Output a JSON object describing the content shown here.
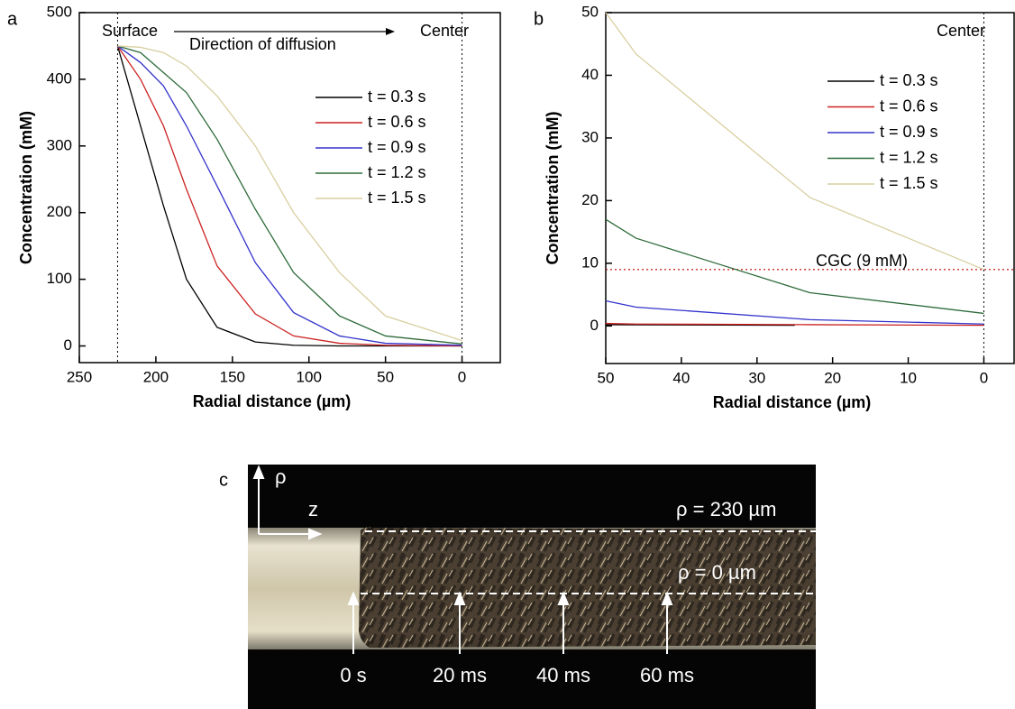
{
  "chart_data": [
    {
      "type": "line",
      "panel": "a",
      "x_label": "Radial distance (µm)",
      "y_label": "Concentration (mM)",
      "xlim": [
        250,
        -25
      ],
      "ylim": [
        -25,
        500
      ],
      "xticks": [
        250,
        200,
        150,
        100,
        50,
        0
      ],
      "yticks": [
        0,
        100,
        200,
        300,
        400,
        500
      ],
      "vlines": [
        225,
        0
      ],
      "annotations": [
        "Surface",
        "Direction of diffusion",
        "Center"
      ],
      "series": [
        {
          "name": "t = 0.3 s",
          "color": "#000000",
          "x": [
            225,
            210,
            195,
            180,
            160,
            135,
            110,
            80,
            50,
            0
          ],
          "values": [
            450,
            330,
            210,
            100,
            28,
            6,
            1,
            0,
            0,
            0
          ]
        },
        {
          "name": "t = 0.6 s",
          "color": "#cc2222",
          "x": [
            225,
            210,
            195,
            180,
            160,
            135,
            110,
            80,
            50,
            0
          ],
          "values": [
            450,
            400,
            330,
            235,
            120,
            48,
            15,
            4,
            1,
            0
          ]
        },
        {
          "name": "t = 0.9 s",
          "color": "#3333cc",
          "x": [
            225,
            210,
            195,
            180,
            160,
            135,
            110,
            80,
            50,
            0
          ],
          "values": [
            450,
            425,
            390,
            330,
            240,
            125,
            50,
            15,
            4,
            1
          ]
        },
        {
          "name": "t = 1.2 s",
          "color": "#2e6b3a",
          "x": [
            225,
            210,
            195,
            180,
            160,
            135,
            110,
            80,
            50,
            0
          ],
          "values": [
            450,
            440,
            410,
            380,
            310,
            205,
            110,
            45,
            15,
            3
          ]
        },
        {
          "name": "t = 1.5 s",
          "color": "#d8cfa0",
          "x": [
            225,
            210,
            195,
            180,
            160,
            135,
            110,
            80,
            50,
            0
          ],
          "values": [
            450,
            448,
            440,
            420,
            375,
            300,
            200,
            110,
            45,
            8
          ]
        }
      ]
    },
    {
      "type": "line",
      "panel": "b",
      "x_label": "Radial distance (µm)",
      "y_label": "Concentration (mM)",
      "xlim": [
        50,
        -4
      ],
      "ylim": [
        -6,
        50
      ],
      "xticks": [
        50,
        40,
        30,
        20,
        10,
        0
      ],
      "yticks": [
        0,
        10,
        20,
        30,
        40,
        50
      ],
      "vlines": [
        0
      ],
      "annotations": [
        "Center"
      ],
      "hline": {
        "value": 9,
        "label": "CGC (9 mM)",
        "color": "#c00000"
      },
      "series": [
        {
          "name": "t = 0.3 s",
          "color": "#000000",
          "x": [
            50,
            25
          ],
          "values": [
            0.2,
            0.1
          ]
        },
        {
          "name": "t = 0.6 s",
          "color": "#cc2222",
          "x": [
            50,
            46,
            23,
            0
          ],
          "values": [
            0.4,
            0.3,
            0.2,
            0.1
          ]
        },
        {
          "name": "t = 0.9 s",
          "color": "#3333cc",
          "x": [
            50,
            46,
            23,
            0
          ],
          "values": [
            4,
            3,
            1,
            0.3
          ]
        },
        {
          "name": "t = 1.2 s",
          "color": "#2e6b3a",
          "x": [
            50,
            46,
            23,
            0
          ],
          "values": [
            17,
            14,
            5.3,
            2
          ]
        },
        {
          "name": "t = 1.5 s",
          "color": "#d8cfa0",
          "x": [
            50,
            46,
            23,
            0
          ],
          "values": [
            50,
            43.4,
            20.5,
            9
          ]
        }
      ]
    }
  ],
  "photo": {
    "panel": "c",
    "axis_labels": [
      "ρ",
      "z"
    ],
    "line_labels": [
      "ρ = 230 µm",
      "ρ = 0 µm"
    ],
    "time_labels": [
      "0 s",
      "20 ms",
      "40 ms",
      "60 ms"
    ]
  }
}
